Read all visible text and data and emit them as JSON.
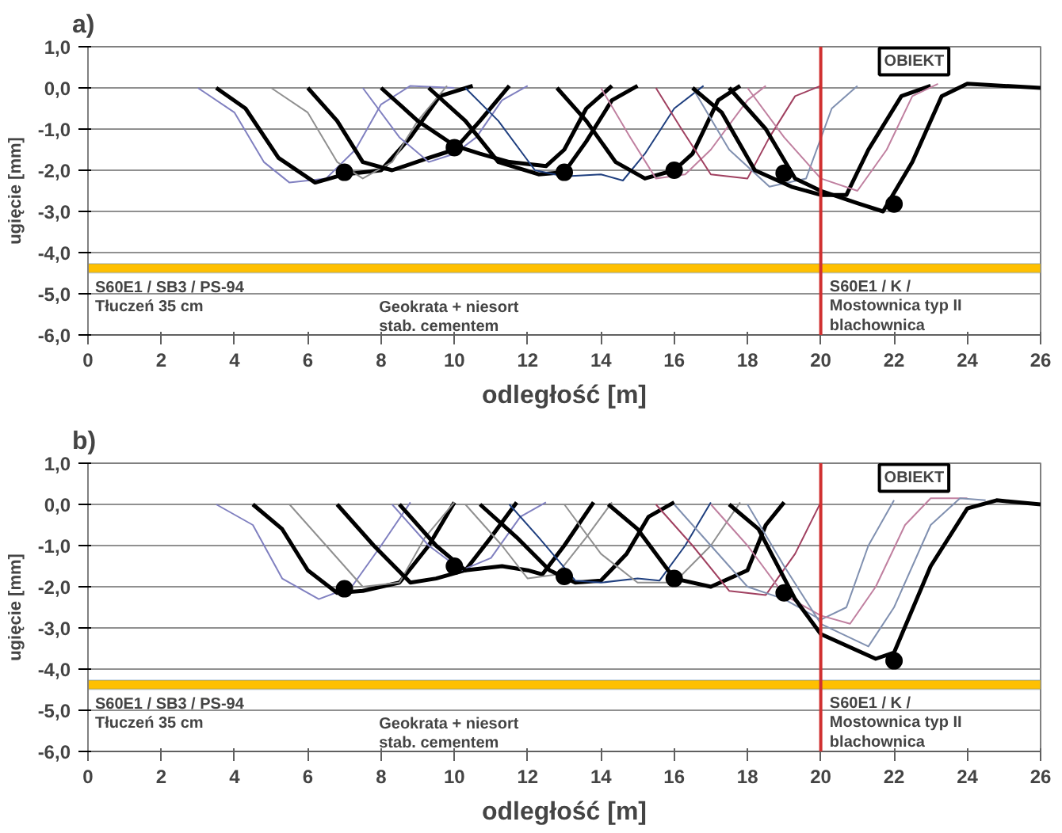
{
  "chart_data": [
    {
      "type": "line",
      "title": "a)",
      "xlabel": "odległość [m]",
      "ylabel": "ugięcie [mm]",
      "xlim": [
        0,
        26
      ],
      "xticks": [
        0,
        2,
        4,
        6,
        8,
        10,
        12,
        14,
        16,
        18,
        20,
        22,
        24,
        26
      ],
      "ylim": [
        -6,
        1
      ],
      "yticks": [
        {
          "value": -6,
          "label": "-6,0"
        },
        {
          "value": -5,
          "label": "-5,0"
        },
        {
          "value": -4,
          "label": "-4,0"
        },
        {
          "value": -3,
          "label": "-3,0"
        },
        {
          "value": -2,
          "label": "-2,0"
        },
        {
          "value": -1,
          "label": "-1,0"
        },
        {
          "value": 0,
          "label": "0,0"
        },
        {
          "value": 1,
          "label": "1,0"
        }
      ],
      "grid": "y",
      "series": [
        {
          "color": "#8080c0",
          "x": [
            3,
            4,
            4.8,
            5.5,
            6.5,
            7.3,
            8,
            8.8,
            10
          ],
          "values": [
            0,
            -0.6,
            -1.8,
            -2.3,
            -2.2,
            -1.5,
            -0.4,
            0.05,
            0
          ]
        },
        {
          "color": "#000000",
          "x": [
            3.5,
            4.3,
            5.2,
            6.2,
            7,
            8,
            8.8,
            9.6,
            10.5
          ],
          "values": [
            0,
            -0.5,
            -1.7,
            -2.3,
            -2.1,
            -2.0,
            -1.2,
            -0.2,
            0.05
          ]
        },
        {
          "color": "#909090",
          "x": [
            5,
            6,
            6.8,
            7.5,
            8.3,
            9,
            9.8
          ],
          "values": [
            0,
            -0.6,
            -1.8,
            -2.2,
            -1.8,
            -0.8,
            0.05
          ]
        },
        {
          "color": "#000000",
          "x": [
            6,
            6.8,
            7.5,
            8.3,
            9.3,
            10,
            10.7,
            11.5
          ],
          "values": [
            0,
            -0.8,
            -1.8,
            -2.0,
            -1.7,
            -1.5,
            -0.8,
            0.05
          ]
        },
        {
          "color": "#8080c0",
          "x": [
            7.5,
            8.5,
            9.3,
            10,
            10.6,
            11.3,
            12
          ],
          "values": [
            0,
            -1.2,
            -1.8,
            -1.6,
            -1.2,
            -0.3,
            0.05
          ]
        },
        {
          "color": "#000000",
          "x": [
            8,
            9,
            10,
            10.7,
            11.5,
            12.5,
            13,
            13.6,
            14.3
          ],
          "values": [
            0,
            -0.8,
            -1.4,
            -1.6,
            -1.8,
            -1.9,
            -1.5,
            -0.5,
            0.05
          ]
        },
        {
          "color": "#000000",
          "x": [
            9.3,
            10.3,
            11.2,
            12.3,
            13,
            13.6,
            14.3,
            15
          ],
          "values": [
            0,
            -0.8,
            -1.8,
            -2.1,
            -2.05,
            -1.3,
            -0.3,
            0.05
          ]
        },
        {
          "color": "#1f3f7f",
          "x": [
            10.3,
            11.2,
            12.2,
            13,
            14,
            14.6,
            15.2,
            16,
            16.8
          ],
          "values": [
            0,
            -0.8,
            -2.0,
            -2.15,
            -2.1,
            -2.25,
            -1.6,
            -0.5,
            0.05
          ]
        },
        {
          "color": "#000000",
          "x": [
            12.8,
            13.6,
            14.4,
            15.2,
            16,
            16.5,
            17.2,
            17.8
          ],
          "values": [
            0,
            -0.8,
            -1.8,
            -2.2,
            -2.0,
            -1.6,
            -0.3,
            0.05
          ]
        },
        {
          "color": "#c080a0",
          "x": [
            14,
            14.8,
            15.5,
            16.3,
            17,
            18,
            18.5
          ],
          "values": [
            0,
            -1.2,
            -2.2,
            -2.1,
            -1.5,
            -0.3,
            0.05
          ]
        },
        {
          "color": "#a04060",
          "x": [
            15.5,
            16.2,
            17,
            18,
            18.6,
            19.3,
            20
          ],
          "values": [
            0,
            -1.0,
            -2.1,
            -2.2,
            -1.2,
            -0.2,
            0.05
          ]
        },
        {
          "color": "#8090b0",
          "x": [
            16.5,
            17.5,
            18.6,
            19.6,
            20.3,
            21
          ],
          "values": [
            0,
            -1.5,
            -2.4,
            -2.2,
            -0.5,
            0.05
          ]
        },
        {
          "color": "#000000",
          "x": [
            16.5,
            17.3,
            18.2,
            19.2,
            20,
            20.7,
            21.3,
            22.2,
            23
          ],
          "values": [
            0,
            -0.6,
            -2.0,
            -2.4,
            -2.6,
            -2.6,
            -1.5,
            -0.2,
            0.05
          ]
        },
        {
          "color": "#c080a0",
          "x": [
            18,
            19,
            20,
            21,
            21.8,
            22.5,
            23.2
          ],
          "values": [
            0,
            -1.2,
            -2.2,
            -2.5,
            -1.5,
            -0.2,
            0.1
          ]
        },
        {
          "color": "#000000",
          "x": [
            17.5,
            18.5,
            19.3,
            20,
            21,
            21.7,
            22.5,
            23.3,
            24,
            25,
            26
          ],
          "values": [
            0,
            -1.0,
            -2.2,
            -2.5,
            -2.8,
            -3.0,
            -1.8,
            -0.2,
            0.1,
            0.05,
            0
          ]
        },
        {
          "type": "scatter",
          "marker": "circle",
          "color": "#000000",
          "x": [
            7,
            10,
            13,
            16,
            19,
            22
          ],
          "values": [
            -2.05,
            -1.45,
            -2.05,
            -2.0,
            -2.07,
            -2.82
          ]
        }
      ],
      "bands": [
        {
          "axis": "y",
          "from": -4.49,
          "to": -4.27,
          "color": "#ffc000"
        }
      ],
      "ref_lines": [
        {
          "axis": "x",
          "value": 20,
          "color": "#d03030"
        }
      ],
      "annotations": [
        "OBIEKT",
        "S60E1 / SB3 / PS-94\nTłuczeń 35 cm",
        "Geokrata + niesort\nstab. cementem",
        "S60E1 / K /\nMostownica typ II\nblachownica"
      ]
    },
    {
      "type": "line",
      "title": "b)",
      "xlabel": "odległość [m]",
      "ylabel": "ugięcie [mm]",
      "xlim": [
        0,
        26
      ],
      "xticks": [
        0,
        2,
        4,
        6,
        8,
        10,
        12,
        14,
        16,
        18,
        20,
        22,
        24,
        26
      ],
      "ylim": [
        -6,
        1
      ],
      "yticks": [
        {
          "value": -6,
          "label": "-6,0"
        },
        {
          "value": -5,
          "label": "-5,0"
        },
        {
          "value": -4,
          "label": "-4,0"
        },
        {
          "value": -3,
          "label": "-3,0"
        },
        {
          "value": -2,
          "label": "-2,0"
        },
        {
          "value": -1,
          "label": "-1,0"
        },
        {
          "value": 0,
          "label": "0,0"
        },
        {
          "value": 1,
          "label": "1,0"
        }
      ],
      "grid": "y",
      "series": [
        {
          "color": "#8080c0",
          "x": [
            3.5,
            4.5,
            5.3,
            6.3,
            7.2,
            8,
            8.8
          ],
          "values": [
            0,
            -0.5,
            -1.8,
            -2.3,
            -2.0,
            -1.0,
            0.05
          ]
        },
        {
          "color": "#000000",
          "x": [
            4.5,
            5.3,
            6,
            6.8,
            7.5,
            8.5,
            9.3,
            10
          ],
          "values": [
            0,
            -0.6,
            -1.6,
            -2.15,
            -2.1,
            -1.9,
            -1.0,
            0.05
          ]
        },
        {
          "color": "#909090",
          "x": [
            5.5,
            6.5,
            7.5,
            8.5,
            9.2,
            10
          ],
          "values": [
            0,
            -1.0,
            -2.0,
            -1.9,
            -0.8,
            0.05
          ]
        },
        {
          "color": "#000000",
          "x": [
            6.8,
            7.8,
            8.8,
            9.5,
            10.3,
            11,
            11.7
          ],
          "values": [
            0,
            -1.0,
            -1.9,
            -1.8,
            -1.6,
            -0.8,
            0.05
          ]
        },
        {
          "color": "#8080c0",
          "x": [
            8.3,
            9.3,
            10.2,
            11,
            11.8,
            12.5
          ],
          "values": [
            0,
            -1.0,
            -1.6,
            -1.3,
            -0.3,
            0.05
          ]
        },
        {
          "color": "#000000",
          "x": [
            8.5,
            9.5,
            10.3,
            11.3,
            12,
            12.4,
            13,
            13.8
          ],
          "values": [
            0,
            -1.0,
            -1.6,
            -1.5,
            -1.6,
            -1.7,
            -1.0,
            0.05
          ]
        },
        {
          "color": "#909090",
          "x": [
            10.3,
            11.3,
            12,
            12.8,
            13.6,
            14.3
          ],
          "values": [
            0,
            -1.0,
            -1.8,
            -1.7,
            -0.8,
            0.05
          ]
        },
        {
          "color": "#000000",
          "x": [
            10.7,
            11.7,
            12.6,
            13.3,
            14,
            14.7,
            15.3,
            16
          ],
          "values": [
            0,
            -0.8,
            -1.6,
            -1.9,
            -1.85,
            -1.2,
            -0.3,
            0.05
          ]
        },
        {
          "color": "#1f3f7f",
          "x": [
            11.5,
            12.3,
            13.3,
            14,
            15,
            15.6,
            16.3,
            17
          ],
          "values": [
            0,
            -0.8,
            -1.85,
            -1.9,
            -1.8,
            -1.85,
            -1.0,
            0.05
          ]
        },
        {
          "color": "#909090",
          "x": [
            13,
            14,
            15,
            16,
            17,
            17.8
          ],
          "values": [
            0,
            -1.2,
            -1.9,
            -1.9,
            -1.0,
            0.05
          ]
        },
        {
          "color": "#000000",
          "x": [
            14.2,
            15,
            16,
            17,
            18,
            18.5,
            19
          ],
          "values": [
            0,
            -0.6,
            -1.8,
            -2.0,
            -1.6,
            -0.5,
            0.05
          ]
        },
        {
          "color": "#a04060",
          "x": [
            15.5,
            16.5,
            17.5,
            18.5,
            19.3,
            20
          ],
          "values": [
            0,
            -1.0,
            -2.1,
            -2.2,
            -1.2,
            0.05
          ]
        },
        {
          "color": "#8090b0",
          "x": [
            16,
            17,
            18,
            19,
            20,
            20.7,
            21.3,
            22
          ],
          "values": [
            0,
            -1.0,
            -2.0,
            -2.3,
            -2.8,
            -2.5,
            -1.0,
            0.1
          ]
        },
        {
          "color": "#c080a0",
          "x": [
            17,
            18,
            19,
            20,
            20.8,
            21.5,
            22.3,
            23,
            24
          ],
          "values": [
            0,
            -1.0,
            -2.2,
            -2.7,
            -2.9,
            -2.0,
            -0.5,
            0.15,
            0.15
          ]
        },
        {
          "color": "#8090b0",
          "x": [
            18,
            19,
            20,
            21.3,
            22,
            23,
            23.8,
            24.5
          ],
          "values": [
            0,
            -1.5,
            -2.9,
            -3.45,
            -2.5,
            -0.5,
            0.15,
            0.1
          ]
        },
        {
          "color": "#000000",
          "x": [
            17.5,
            18.3,
            19.3,
            20,
            21.5,
            22,
            23,
            24,
            24.8,
            26
          ],
          "values": [
            0,
            -0.6,
            -2.3,
            -3.15,
            -3.75,
            -3.6,
            -1.5,
            -0.1,
            0.1,
            0
          ]
        },
        {
          "type": "scatter",
          "marker": "circle",
          "color": "#000000",
          "x": [
            7,
            10,
            13,
            16,
            19,
            22
          ],
          "values": [
            -2.05,
            -1.5,
            -1.75,
            -1.8,
            -2.15,
            -3.8
          ]
        }
      ],
      "bands": [
        {
          "axis": "y",
          "from": -4.49,
          "to": -4.27,
          "color": "#ffc000"
        }
      ],
      "ref_lines": [
        {
          "axis": "x",
          "value": 20,
          "color": "#d03030"
        }
      ],
      "annotations": [
        "OBIEKT",
        "S60E1 / SB3 / PS-94\nTłuczeń 35 cm",
        "Geokrata + niesort\nstab. cementem",
        "S60E1 / K /\nMostownica typ II\nblachownica"
      ]
    }
  ]
}
